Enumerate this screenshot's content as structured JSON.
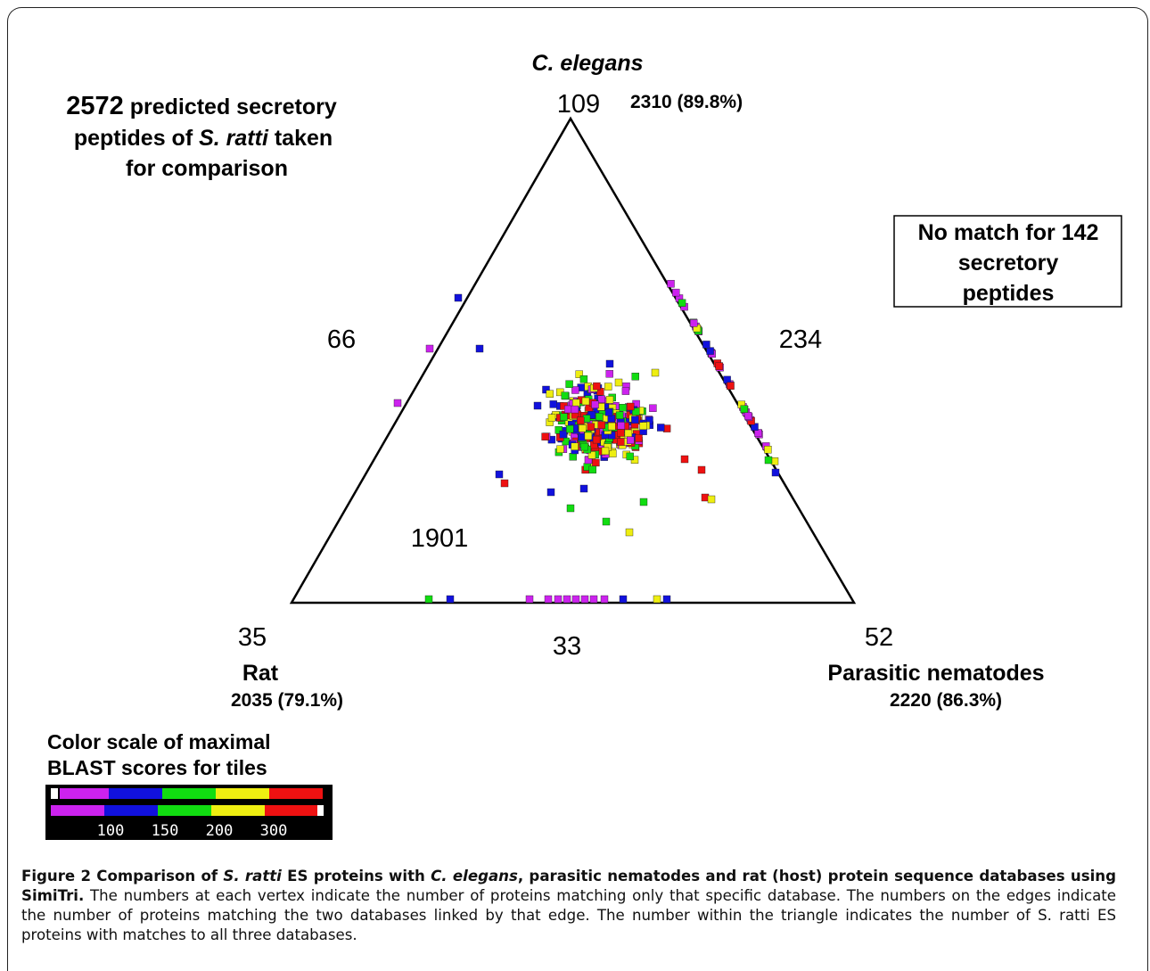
{
  "figure": {
    "top_vertex_label": "C. elegans",
    "top_vertex_count": "109",
    "top_total": "2310 (89.8%)",
    "left_vertex_label": "Rat",
    "left_vertex_count": "35",
    "left_total": "2035 (79.1%)",
    "right_vertex_label": "Parasitic nematodes",
    "right_vertex_count": "52",
    "right_total": "2220 (86.3%)",
    "left_edge_count": "66",
    "right_edge_count": "234",
    "bottom_edge_count": "33",
    "center_count": "1901",
    "intro": {
      "count": "2572",
      "line1_rest": " predicted secretory",
      "line2_prefix": "peptides of ",
      "species": "S. ratti",
      "line2_suffix": " taken",
      "line3": "for comparison"
    },
    "no_match": {
      "line1": "No match for 142",
      "line2": "secretory",
      "line3": "peptides"
    },
    "color_scale": {
      "title_line1": "Color scale of maximal",
      "title_line2": "BLAST scores for tiles",
      "ticks": [
        "100",
        "150",
        "200",
        "300"
      ],
      "colors": [
        "#cc22ee",
        "#1111dd",
        "#11dd11",
        "#eeee11",
        "#ee1111"
      ]
    }
  },
  "caption": {
    "label": "Figure 2",
    "title_1": " Comparison of ",
    "title_italic_1": "S. ratti",
    "title_2": " ES proteins with ",
    "title_italic_2": "C. elegans",
    "title_3": ", parasitic nematodes and rat (host) protein sequence databases using SimiTri.",
    "body": " The numbers at each vertex indicate the number of proteins matching only that specific database. The numbers on the edges indicate the number of proteins matching the two databases linked by that edge. The number within the triangle indicates the number of S. ratti ES proteins with matches to all three databases."
  }
}
